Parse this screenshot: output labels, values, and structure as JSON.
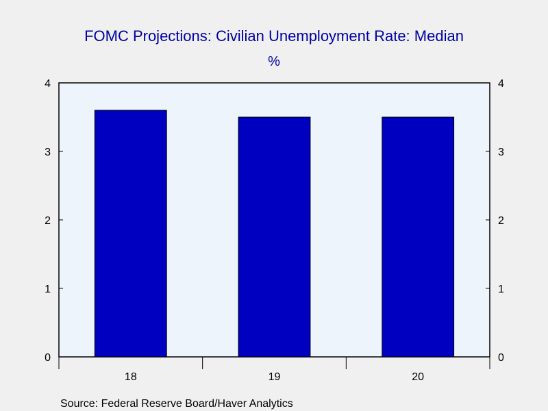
{
  "chart_data": {
    "type": "bar",
    "title": "FOMC Projections: Civilian Unemployment Rate: Median",
    "subtitle": "%",
    "categories": [
      "18",
      "19",
      "20"
    ],
    "values": [
      3.6,
      3.5,
      3.5
    ],
    "ylim": [
      0,
      4
    ],
    "yticks": [
      0,
      1,
      2,
      3,
      4
    ],
    "ytick_labels": [
      "0",
      "1",
      "2",
      "3",
      "4"
    ],
    "right_axis": true,
    "grid": false,
    "source": "Source:  Federal Reserve Board/Haver Analytics",
    "colors": {
      "bar": "#0000c0",
      "bar_edge": "#000000",
      "plot_background": "#eef4fc",
      "page_background": "#f0f0f0",
      "title": "#0000a8"
    }
  }
}
